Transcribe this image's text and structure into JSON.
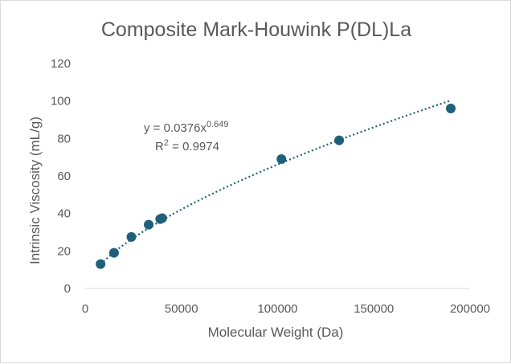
{
  "chart_data": {
    "type": "scatter",
    "title": "Composite Mark-Houwink P(DL)La",
    "xlabel": "Molecular Weight (Da)",
    "ylabel": "Intrinsic Viscosity (mL/g)",
    "xlim": [
      0,
      200000
    ],
    "ylim": [
      0,
      120
    ],
    "xticks": [
      0,
      50000,
      100000,
      150000,
      200000
    ],
    "yticks": [
      0,
      20,
      40,
      60,
      80,
      100,
      120
    ],
    "xtick_labels": [
      "0",
      "50000",
      "100000",
      "150000",
      "200000"
    ],
    "ytick_labels": [
      "0",
      "20",
      "40",
      "60",
      "80",
      "100",
      "120"
    ],
    "grid": false,
    "marker_color": "#1f5f7a",
    "series": [
      {
        "points": [
          {
            "x": 8000,
            "y": 13
          },
          {
            "x": 15000,
            "y": 19
          },
          {
            "x": 24000,
            "y": 27.5
          },
          {
            "x": 33000,
            "y": 34
          },
          {
            "x": 39000,
            "y": 37
          },
          {
            "x": 40000,
            "y": 37.5
          },
          {
            "x": 102000,
            "y": 69
          },
          {
            "x": 132000,
            "y": 79
          },
          {
            "x": 190000,
            "y": 96
          }
        ]
      }
    ],
    "trendline": {
      "type": "power",
      "coefficient": 0.0376,
      "exponent": 0.649,
      "x_range": [
        8000,
        190000
      ],
      "style": "dotted",
      "color": "#1f5f7a"
    },
    "annotations": {
      "equation_base": "y = 0.0376x",
      "equation_exp": "0.649",
      "r2_base": "R",
      "r2_exp": "2",
      "r2_value": " = 0.9974"
    }
  }
}
